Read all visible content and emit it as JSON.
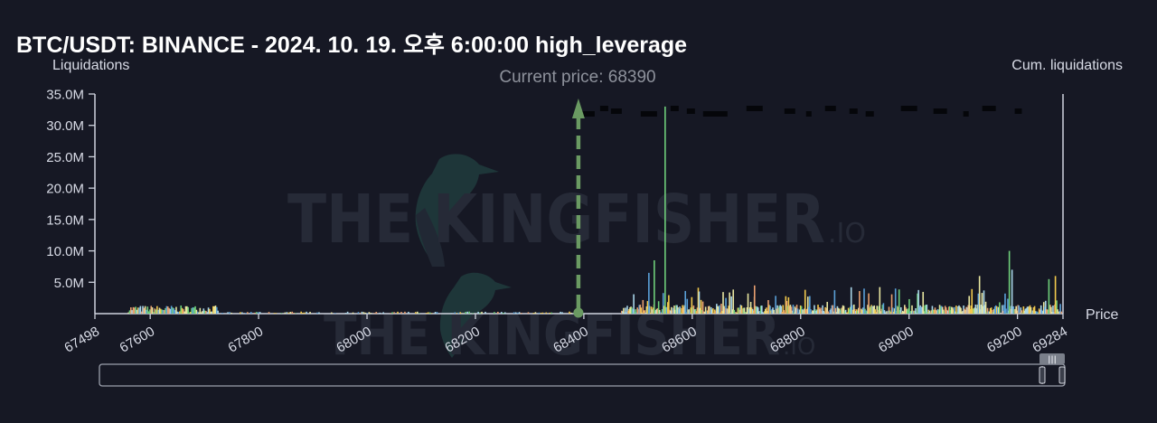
{
  "header": {
    "title": "BTC/USDT: BINANCE - 2024. 10. 19. 오후 6:00:00 high_leverage"
  },
  "watermark": {
    "brand": "THE KINGFISHER",
    "suffix": ".IO",
    "bird": "kingfisher-logo-icon"
  },
  "colors": {
    "background": "#161824",
    "current_price_line": "#6a9a62",
    "axis": "#cfd3de",
    "bars": [
      "#f2c94c",
      "#6fcf7a",
      "#5aa0d8",
      "#e8a070",
      "#a8d5e8",
      "#e8e6a0"
    ],
    "cum_dash": "#05060a"
  },
  "chart_data": {
    "type": "bar",
    "y_axis_title": "Liquidations",
    "y2_axis_title": "Cum. liquidations",
    "x_axis_title": "Price",
    "current_price_label": "Current price: 68390",
    "current_price": 68390,
    "x_range": [
      67498,
      69284
    ],
    "y_range": [
      0,
      35000000
    ],
    "x_tick_values": [
      67498,
      67600,
      67800,
      68000,
      68200,
      68400,
      68600,
      68800,
      69000,
      69200,
      69284
    ],
    "x_tick_labels": [
      "67498",
      "67600",
      "67800",
      "68000",
      "68200",
      "68400",
      "68600",
      "68800",
      "69000",
      "69200",
      "69284"
    ],
    "y_tick_values": [
      5000000,
      10000000,
      15000000,
      20000000,
      25000000,
      30000000,
      35000000
    ],
    "y_tick_labels": [
      "5.0M",
      "10.0M",
      "15.0M",
      "20.0M",
      "25.0M",
      "30.0M",
      "35.0M"
    ],
    "grid": false,
    "legend": "none",
    "notable_bars": [
      {
        "price": 68550,
        "value": 33000000
      },
      {
        "price": 68530,
        "value": 8500000
      },
      {
        "price": 68520,
        "value": 6500000
      },
      {
        "price": 69185,
        "value": 10000000
      },
      {
        "price": 69190,
        "value": 7000000
      },
      {
        "price": 69130,
        "value": 6000000
      },
      {
        "price": 69270,
        "value": 6000000
      },
      {
        "price": 69258,
        "value": 5500000
      },
      {
        "price": 68975,
        "value": 4000000
      },
      {
        "price": 68715,
        "value": 4500000
      }
    ],
    "cumulative_dash_price_ranges": [
      [
        68395,
        68420
      ],
      [
        68430,
        68445
      ],
      [
        68450,
        68470
      ],
      [
        68505,
        68535
      ],
      [
        68560,
        68575
      ],
      [
        68590,
        68605
      ],
      [
        68620,
        68665
      ],
      [
        68700,
        68730
      ],
      [
        68770,
        68790
      ],
      [
        68810,
        68820
      ],
      [
        68845,
        68865
      ],
      [
        68890,
        68905
      ],
      [
        68920,
        68935
      ],
      [
        68985,
        69015
      ],
      [
        69045,
        69070
      ],
      [
        69100,
        69110
      ],
      [
        69135,
        69160
      ],
      [
        69195,
        69208
      ]
    ]
  },
  "range_slider": {
    "handle_grip": "|||"
  }
}
